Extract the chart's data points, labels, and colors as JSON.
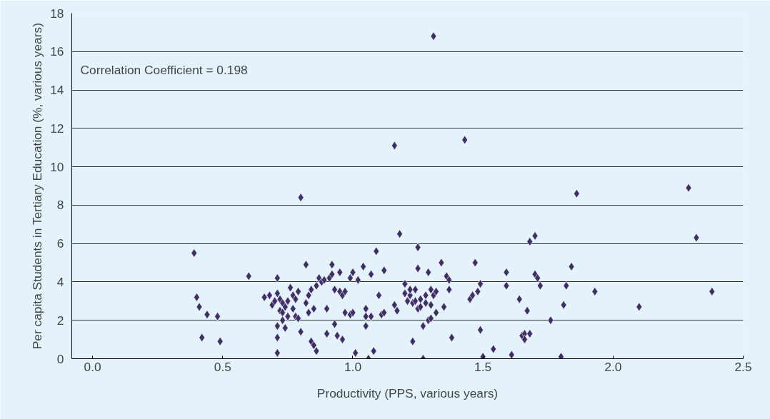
{
  "chart_data": {
    "type": "scatter",
    "xlabel": "Productivity (PPS, various years)",
    "ylabel": "Per capita Students in Tertiary Education (%, various years)",
    "annotations": [
      "Correlation Coefficient = 0.198"
    ],
    "marker": "diamond",
    "grid": "y",
    "xlim": [
      -0.08,
      2.5
    ],
    "xticks": [
      {
        "value": 0,
        "label": "0.0"
      },
      {
        "value": 0.5,
        "label": "0.5"
      },
      {
        "value": 1,
        "label": "1.0"
      },
      {
        "value": 1.5,
        "label": "1.5"
      },
      {
        "value": 2,
        "label": "2.0"
      },
      {
        "value": 2.5,
        "label": "2.5"
      }
    ],
    "ylim": [
      0,
      18
    ],
    "yticks": [
      0,
      2,
      4,
      6,
      8,
      10,
      12,
      14,
      16,
      18
    ],
    "series": [
      {
        "color": "#3f2f67",
        "x": [
          0.39,
          0.4,
          0.41,
          0.42,
          0.44,
          0.48,
          0.49,
          0.6,
          0.66,
          0.68,
          0.69,
          0.7,
          0.71,
          0.71,
          0.71,
          0.71,
          0.71,
          0.72,
          0.72,
          0.73,
          0.73,
          0.73,
          0.74,
          0.74,
          0.75,
          0.75,
          0.76,
          0.77,
          0.77,
          0.78,
          0.78,
          0.79,
          0.79,
          0.8,
          0.8,
          0.82,
          0.82,
          0.83,
          0.83,
          0.84,
          0.84,
          0.85,
          0.85,
          0.86,
          0.86,
          0.87,
          0.88,
          0.89,
          0.9,
          0.9,
          0.91,
          0.92,
          0.92,
          0.93,
          0.93,
          0.94,
          0.95,
          0.95,
          0.96,
          0.96,
          0.97,
          0.97,
          0.99,
          0.99,
          1.0,
          1.0,
          1.01,
          1.02,
          1.04,
          1.05,
          1.05,
          1.05,
          1.06,
          1.07,
          1.07,
          1.08,
          1.09,
          1.1,
          1.11,
          1.12,
          1.12,
          1.16,
          1.16,
          1.17,
          1.18,
          1.2,
          1.2,
          1.21,
          1.22,
          1.22,
          1.23,
          1.23,
          1.24,
          1.24,
          1.25,
          1.25,
          1.25,
          1.26,
          1.26,
          1.27,
          1.27,
          1.28,
          1.28,
          1.29,
          1.29,
          1.3,
          1.3,
          1.3,
          1.31,
          1.31,
          1.32,
          1.32,
          1.34,
          1.35,
          1.36,
          1.37,
          1.37,
          1.38,
          1.43,
          1.45,
          1.46,
          1.47,
          1.48,
          1.49,
          1.49,
          1.5,
          1.54,
          1.59,
          1.59,
          1.61,
          1.64,
          1.65,
          1.66,
          1.66,
          1.67,
          1.68,
          1.68,
          1.7,
          1.7,
          1.71,
          1.72,
          1.76,
          1.8,
          1.81,
          1.82,
          1.84,
          1.86,
          1.93,
          2.1,
          2.29,
          2.32,
          2.38
        ],
        "values": [
          5.5,
          3.2,
          2.7,
          1.1,
          2.3,
          2.2,
          0.9,
          4.3,
          3.2,
          3.3,
          2.8,
          3.0,
          3.4,
          4.2,
          1.7,
          1.1,
          0.3,
          2.5,
          3.1,
          2.9,
          2.4,
          2.0,
          2.7,
          1.6,
          3.0,
          2.2,
          3.7,
          2.6,
          3.3,
          3.1,
          2.2,
          2.1,
          3.5,
          1.4,
          8.4,
          4.9,
          2.9,
          2.4,
          3.3,
          3.6,
          0.9,
          2.6,
          0.7,
          0.4,
          3.8,
          4.2,
          4.0,
          4.1,
          1.3,
          2.6,
          4.2,
          4.9,
          4.4,
          3.6,
          1.8,
          1.2,
          3.5,
          4.5,
          3.3,
          1.0,
          2.4,
          3.5,
          2.3,
          4.2,
          2.4,
          4.5,
          0.3,
          4.1,
          4.8,
          2.6,
          2.2,
          1.7,
          0.0,
          2.2,
          4.4,
          0.4,
          5.6,
          3.3,
          2.3,
          4.6,
          2.4,
          2.8,
          11.1,
          2.5,
          6.5,
          3.9,
          3.4,
          3.0,
          3.3,
          3.6,
          2.9,
          0.9,
          3.6,
          3.0,
          5.8,
          4.7,
          2.6,
          3.1,
          2.7,
          0.0,
          1.7,
          3.3,
          2.9,
          4.5,
          2.0,
          3.6,
          2.8,
          2.1,
          3.3,
          16.8,
          3.5,
          2.4,
          5.0,
          2.7,
          4.3,
          4.1,
          3.6,
          1.1,
          11.4,
          3.1,
          3.3,
          5.0,
          3.5,
          1.5,
          3.9,
          0.1,
          0.5,
          4.5,
          3.8,
          0.2,
          3.1,
          1.2,
          1.3,
          1.0,
          2.5,
          6.1,
          1.3,
          4.4,
          6.4,
          4.2,
          3.8,
          2.0,
          0.1,
          2.8,
          3.8,
          4.8,
          8.6,
          3.5,
          2.7,
          8.9,
          6.3,
          3.5
        ]
      }
    ]
  }
}
